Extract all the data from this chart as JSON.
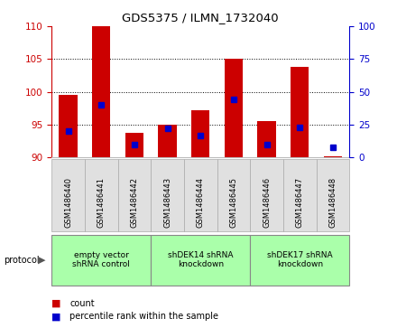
{
  "title": "GDS5375 / ILMN_1732040",
  "samples": [
    "GSM1486440",
    "GSM1486441",
    "GSM1486442",
    "GSM1486443",
    "GSM1486444",
    "GSM1486445",
    "GSM1486446",
    "GSM1486447",
    "GSM1486448"
  ],
  "counts": [
    99.5,
    110.0,
    93.8,
    95.0,
    97.2,
    105.1,
    95.5,
    103.8,
    90.2
  ],
  "percentiles": [
    20,
    40,
    10,
    22,
    17,
    44,
    10,
    23,
    8
  ],
  "ylim_left": [
    90,
    110
  ],
  "ylim_right": [
    0,
    100
  ],
  "yticks_left": [
    90,
    95,
    100,
    105,
    110
  ],
  "yticks_right": [
    0,
    25,
    50,
    75,
    100
  ],
  "bar_color": "#cc0000",
  "dot_color": "#0000cc",
  "bar_width": 0.55,
  "groups": [
    {
      "label": "empty vector\nshRNA control",
      "start": 0,
      "end": 2,
      "color": "#aaffaa"
    },
    {
      "label": "shDEK14 shRNA\nknockdown",
      "start": 3,
      "end": 5,
      "color": "#aaffaa"
    },
    {
      "label": "shDEK17 shRNA\nknockdown",
      "start": 6,
      "end": 8,
      "color": "#aaffaa"
    }
  ],
  "legend_count_color": "#cc0000",
  "legend_dot_color": "#0000cc",
  "grid_color": "#000000",
  "axis_left_color": "#cc0000",
  "axis_right_color": "#0000cc",
  "background_color": "#ffffff",
  "bar_bottom": 90,
  "sample_box_color": "#e0e0e0",
  "protocol_label": "protocol"
}
